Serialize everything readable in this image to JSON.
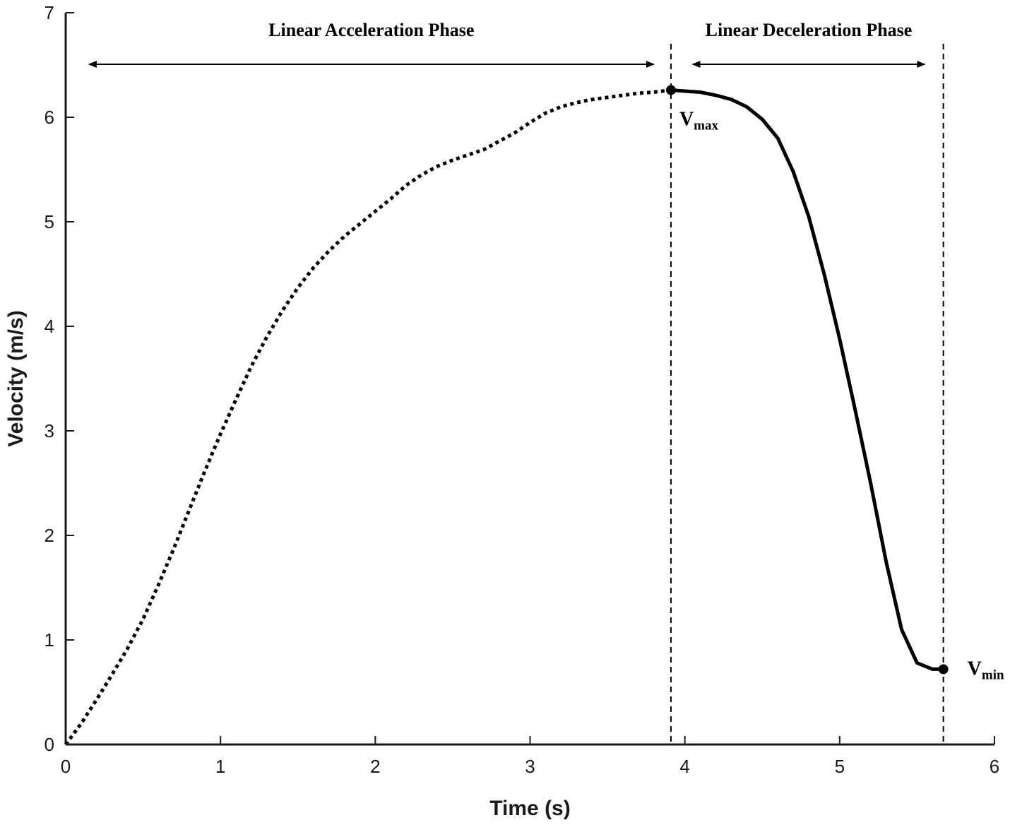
{
  "chart_data": {
    "type": "line",
    "xlabel": "Time (s)",
    "ylabel": "Velocity (m/s)",
    "xlim": [
      0,
      6
    ],
    "ylim": [
      0,
      7
    ],
    "xticks": [
      "0",
      "1",
      "2",
      "3",
      "4",
      "5",
      "6"
    ],
    "yticks": [
      "0",
      "1",
      "2",
      "3",
      "4",
      "5",
      "6",
      "7"
    ],
    "grid": false,
    "series": [
      {
        "style": "dotted",
        "x": [
          0,
          0.1,
          0.2,
          0.3,
          0.4,
          0.5,
          0.6,
          0.7,
          0.8,
          0.9,
          1.0,
          1.1,
          1.2,
          1.3,
          1.4,
          1.5,
          1.6,
          1.7,
          1.8,
          1.9,
          2.0,
          2.1,
          2.2,
          2.3,
          2.4,
          2.5,
          2.6,
          2.7,
          2.8,
          2.9,
          3.0,
          3.1,
          3.2,
          3.3,
          3.4,
          3.5,
          3.6,
          3.7,
          3.8,
          3.91
        ],
        "y": [
          0,
          0.2,
          0.43,
          0.67,
          0.92,
          1.2,
          1.53,
          1.88,
          2.25,
          2.62,
          2.97,
          3.3,
          3.62,
          3.9,
          4.15,
          4.37,
          4.56,
          4.72,
          4.86,
          4.98,
          5.1,
          5.22,
          5.35,
          5.45,
          5.53,
          5.59,
          5.64,
          5.69,
          5.77,
          5.85,
          5.95,
          6.04,
          6.1,
          6.14,
          6.17,
          6.19,
          6.21,
          6.23,
          6.24,
          6.26
        ]
      },
      {
        "style": "solid",
        "x": [
          3.91,
          4.0,
          4.1,
          4.2,
          4.3,
          4.4,
          4.5,
          4.6,
          4.7,
          4.8,
          4.9,
          5.0,
          5.1,
          5.2,
          5.3,
          5.4,
          5.5,
          5.6,
          5.67
        ],
        "y": [
          6.26,
          6.25,
          6.24,
          6.21,
          6.17,
          6.1,
          5.98,
          5.8,
          5.48,
          5.05,
          4.5,
          3.88,
          3.2,
          2.5,
          1.75,
          1.1,
          0.78,
          0.72,
          0.72
        ]
      }
    ],
    "points": [
      {
        "x": 3.91,
        "y": 6.26,
        "label": "V",
        "sub": "max"
      },
      {
        "x": 5.67,
        "y": 0.72,
        "label": "V",
        "sub": "min"
      }
    ],
    "vlines": [
      3.91,
      5.67
    ],
    "phases": [
      {
        "label": "Linear Acceleration Phase",
        "from": 0.15,
        "to": 3.8,
        "y": 6.5
      },
      {
        "label": "Linear Deceleration Phase",
        "from": 4.05,
        "to": 5.55,
        "y": 6.5
      }
    ]
  }
}
